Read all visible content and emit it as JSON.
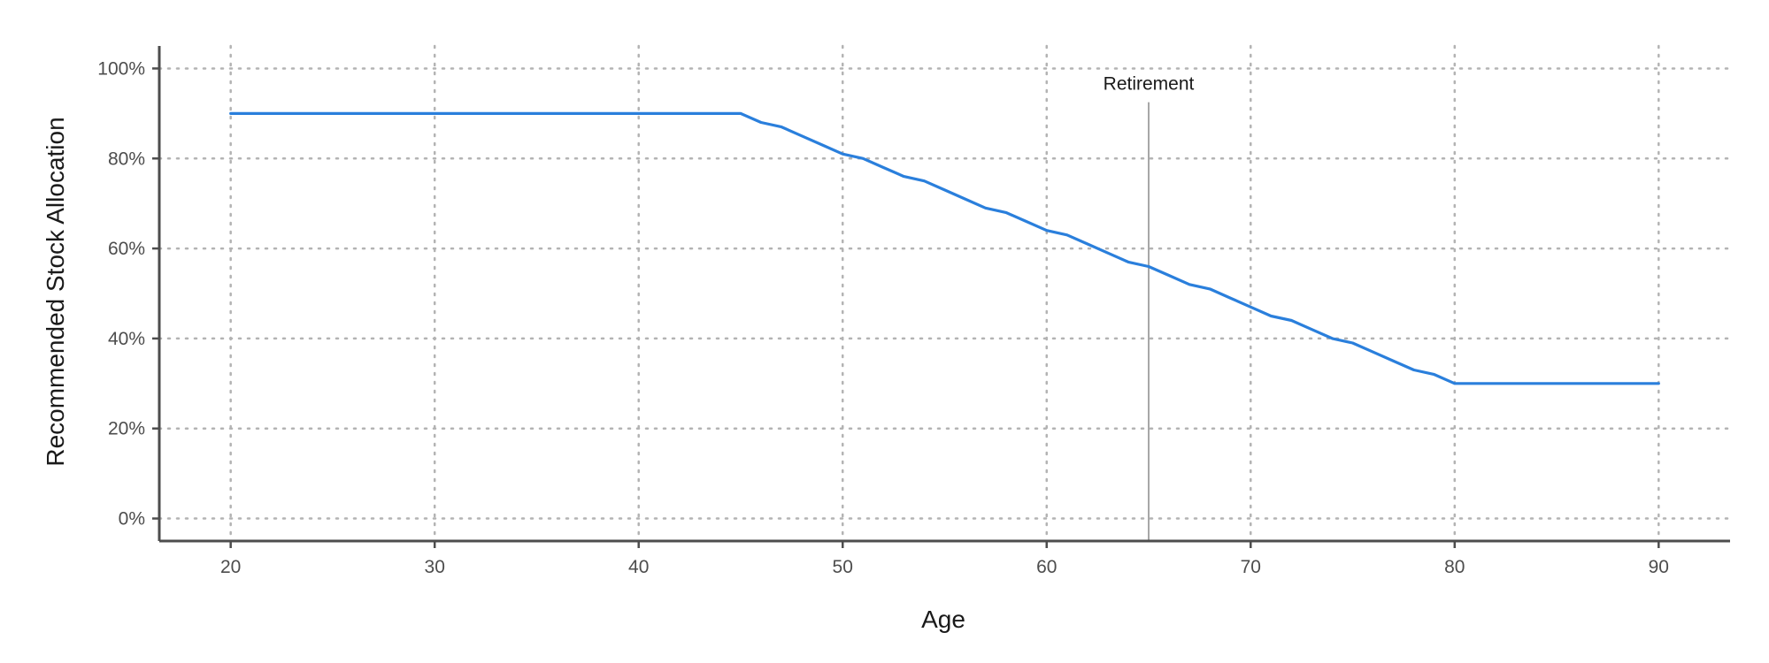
{
  "chart_data": {
    "type": "line",
    "title": "",
    "xlabel": "Age",
    "ylabel": "Recommended Stock Allocation",
    "xlim": [
      16.5,
      93.5
    ],
    "ylim": [
      -0.05,
      1.05
    ],
    "x_ticks": [
      20,
      30,
      40,
      50,
      60,
      70,
      80,
      90
    ],
    "x_tick_labels": [
      "20",
      "30",
      "40",
      "50",
      "60",
      "70",
      "80",
      "90"
    ],
    "y_ticks": [
      0,
      0.2,
      0.4,
      0.6,
      0.8,
      1.0
    ],
    "y_tick_labels": [
      "0%",
      "20%",
      "40%",
      "60%",
      "80%",
      "100%"
    ],
    "grid": true,
    "grid_style": "dotted",
    "legend": "none",
    "series": [
      {
        "color": "#2a7fdc",
        "x": [
          20,
          45,
          46,
          47,
          48,
          49,
          50,
          51,
          52,
          53,
          54,
          55,
          56,
          57,
          58,
          59,
          60,
          61,
          62,
          63,
          64,
          65,
          66,
          67,
          68,
          69,
          70,
          71,
          72,
          73,
          74,
          75,
          76,
          77,
          78,
          79,
          80,
          90
        ],
        "y": [
          0.9,
          0.9,
          0.88,
          0.87,
          0.85,
          0.83,
          0.81,
          0.8,
          0.78,
          0.76,
          0.75,
          0.73,
          0.71,
          0.69,
          0.68,
          0.66,
          0.64,
          0.63,
          0.61,
          0.59,
          0.57,
          0.56,
          0.54,
          0.52,
          0.51,
          0.49,
          0.47,
          0.45,
          0.44,
          0.42,
          0.4,
          0.39,
          0.37,
          0.35,
          0.33,
          0.32,
          0.3,
          0.3
        ]
      }
    ],
    "annotations": [
      {
        "type": "vline",
        "x": 65,
        "y_top": 0.925,
        "label": "Retirement",
        "color": "#a6a6a6"
      }
    ]
  }
}
